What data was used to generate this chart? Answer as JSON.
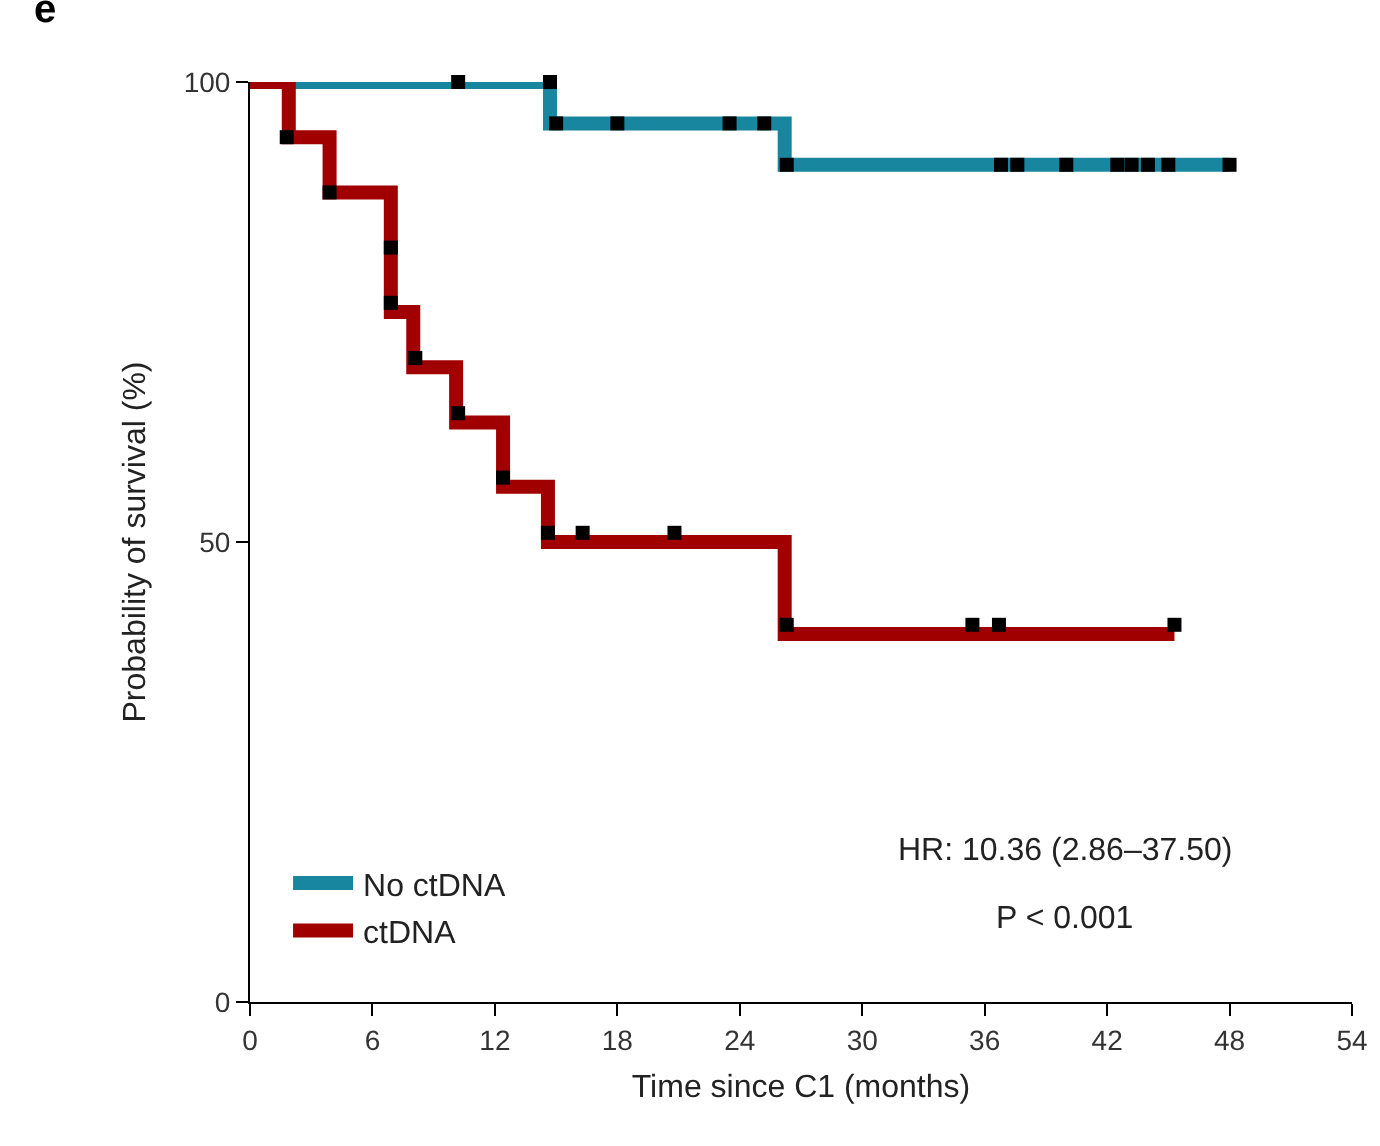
{
  "chart_data": {
    "type": "step",
    "xlabel": "Time since C1 (months)",
    "ylabel": "Probability of survival (%)",
    "xlim": [
      0,
      54
    ],
    "xticks": [
      0,
      6,
      12,
      18,
      24,
      30,
      36,
      42,
      48,
      54
    ],
    "ylim": [
      0,
      100
    ],
    "yticks": [
      0,
      50,
      100
    ],
    "grid": false,
    "legend": "bottom left",
    "line_style": "solid",
    "annotations": [
      "e",
      "HR: 10.36 (2.86–37.50)",
      "P < 0.001"
    ],
    "series": [
      {
        "name": "No ctDNA",
        "color": "#17869e",
        "x": [
          0,
          14.7,
          26.2,
          48
        ],
        "values": [
          100,
          95.5,
          91,
          91
        ]
      },
      {
        "name": "ctDNA",
        "color": "#a00000",
        "x": [
          0,
          1.9,
          3.9,
          6.9,
          8.0,
          10.1,
          12.4,
          14.6,
          26.2,
          45.3
        ],
        "values": [
          100,
          94,
          88,
          75,
          69,
          63,
          56,
          50,
          40,
          40
        ]
      },
      {
        "type": "scatter",
        "color": "#000000",
        "marker": "square",
        "x": [
          10.2,
          14.7,
          15,
          18,
          23.5,
          25.2,
          26.3,
          36.8,
          37.6,
          40,
          42.5,
          43.2,
          44,
          45,
          48
        ],
        "values": [
          100,
          100,
          95.5,
          95.5,
          95.5,
          95.5,
          91,
          91,
          91,
          91,
          91,
          91,
          91,
          91,
          91
        ]
      },
      {
        "type": "scatter",
        "color": "#000000",
        "marker": "square",
        "x": [
          1.8,
          3.9,
          6.9,
          6.9,
          8.1,
          10.2,
          12.4,
          14.6,
          16.3,
          20.8,
          26.3,
          35.4,
          36.7,
          45.3
        ],
        "values": [
          94,
          88,
          82,
          76,
          70,
          64,
          57,
          51,
          51,
          51,
          41,
          41,
          41,
          41
        ]
      }
    ]
  }
}
